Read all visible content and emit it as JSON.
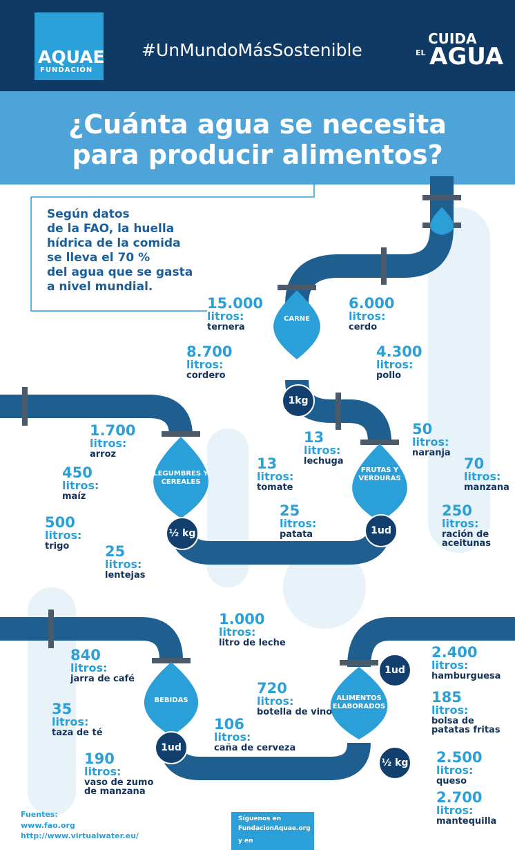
{
  "header": {
    "logo": {
      "name": "AQUAE",
      "subtitle": "FUNDACIÓN"
    },
    "hashtag": "#UnMundoMásSostenible",
    "campaign": {
      "line1": "CUIDA",
      "line2": "EL",
      "line3": "AGUA"
    }
  },
  "title": {
    "lines": [
      "¿Cuánta agua se necesita",
      "para producir alimentos?"
    ]
  },
  "intro": {
    "lines": [
      "Según datos",
      "de la FAO, la huella",
      "hídrica de la comida",
      "se lleva el 70 %",
      "del agua que se gasta",
      "a nivel mundial."
    ]
  },
  "groups": [
    {
      "label": "CARNE",
      "badges": [
        "1kg"
      ],
      "items": [
        {
          "amount": "15.000",
          "unit": "litros:",
          "name": "ternera"
        },
        {
          "amount": "6.000",
          "unit": "litros:",
          "name": "cerdo"
        },
        {
          "amount": "8.700",
          "unit": "litros:",
          "name": "cordero"
        },
        {
          "amount": "4.300",
          "unit": "litros:",
          "name": "pollo"
        }
      ]
    },
    {
      "label": "LEGUMBRES Y CEREALES",
      "badges": [
        "½ kg"
      ],
      "items": [
        {
          "amount": "1.700",
          "unit": "litros:",
          "name": "arroz"
        },
        {
          "amount": "450",
          "unit": "litros:",
          "name": "maíz"
        },
        {
          "amount": "500",
          "unit": "litros:",
          "name": "trigo"
        },
        {
          "amount": "25",
          "unit": "litros:",
          "name": "lentejas"
        }
      ]
    },
    {
      "label": "FRUTAS Y VERDURAS",
      "badges": [
        "1ud"
      ],
      "items": [
        {
          "amount": "13",
          "unit": "litros:",
          "name": "lechuga"
        },
        {
          "amount": "50",
          "unit": "litros:",
          "name": "naranja"
        },
        {
          "amount": "13",
          "unit": "litros:",
          "name": "tomate"
        },
        {
          "amount": "70",
          "unit": "litros:",
          "name": "manzana"
        },
        {
          "amount": "25",
          "unit": "litros:",
          "name": "patata"
        },
        {
          "amount": "250",
          "unit": "litros:",
          "name": "ración de aceitunas"
        }
      ]
    },
    {
      "label": "BEBIDAS",
      "badges": [
        "1ud"
      ],
      "items": [
        {
          "amount": "1.000",
          "unit": "litros:",
          "name": "litro de leche"
        },
        {
          "amount": "840",
          "unit": "litros:",
          "name": "jarra de café"
        },
        {
          "amount": "720",
          "unit": "litros:",
          "name": "botella de vino"
        },
        {
          "amount": "35",
          "unit": "litros:",
          "name": "taza de té"
        },
        {
          "amount": "106",
          "unit": "litros:",
          "name": "caña de cerveza"
        },
        {
          "amount": "190",
          "unit": "litros:",
          "name": "vaso de zumo de manzana"
        }
      ]
    },
    {
      "label": "ALIMENTOS ELABORADOS",
      "badges": [
        "1ud",
        "½ kg"
      ],
      "items": [
        {
          "amount": "2.400",
          "unit": "litros:",
          "name": "hamburguesa"
        },
        {
          "amount": "185",
          "unit": "litros:",
          "name": "bolsa de patatas fritas"
        },
        {
          "amount": "2.500",
          "unit": "litros:",
          "name": "queso"
        },
        {
          "amount": "2.700",
          "unit": "litros:",
          "name": "mantequilla"
        }
      ]
    }
  ],
  "footer": {
    "sources_title": "Fuentes:",
    "sources": [
      "www.fao.org",
      "http://www.virtualwater.eu/"
    ],
    "follow": "Síguenos en",
    "site": "FundacionAquae.org",
    "social": "y en"
  }
}
